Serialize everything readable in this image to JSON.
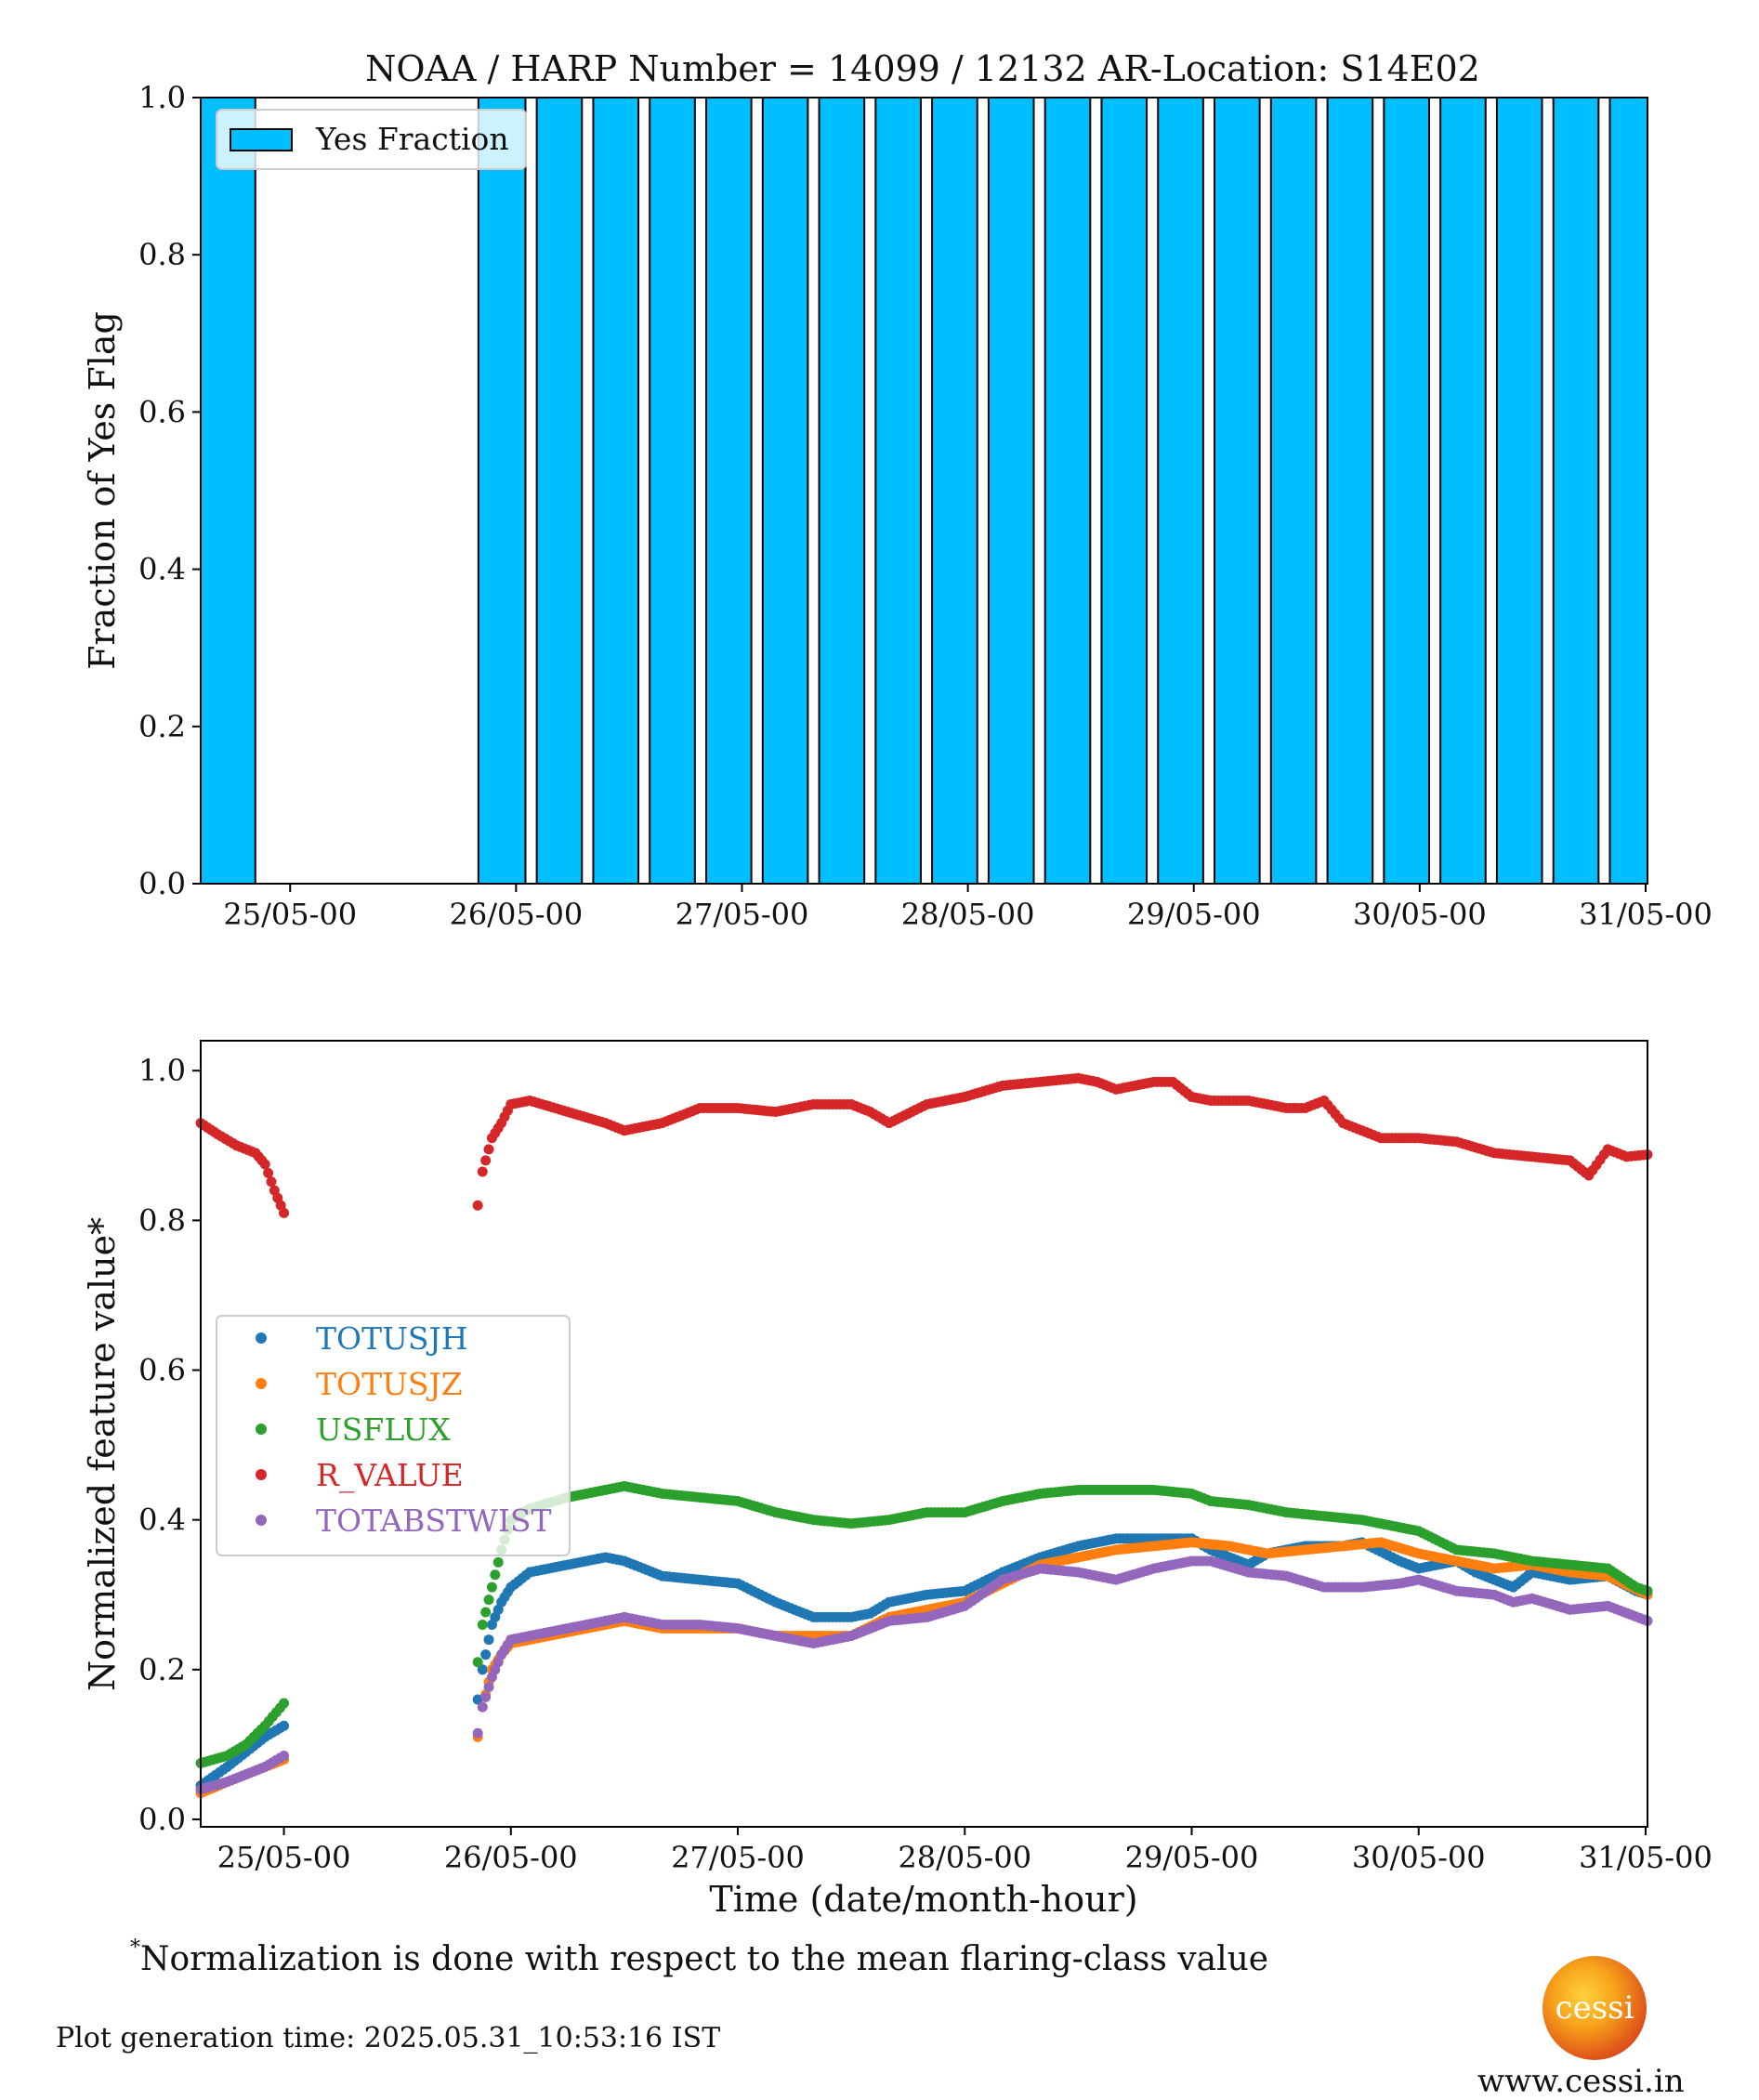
{
  "chart_data": [
    {
      "type": "bar",
      "title": "NOAA / HARP Number = 14099 / 12132      AR-Location: S14E02",
      "xlabel": "",
      "ylabel": "Fraction of Yes Flag",
      "ylim": [
        0.0,
        1.0
      ],
      "yticks": [
        "0.0",
        "0.2",
        "0.4",
        "0.6",
        "0.8",
        "1.0"
      ],
      "xticks": [
        "25/05-00",
        "26/05-00",
        "27/05-00",
        "28/05-00",
        "29/05-00",
        "30/05-00",
        "31/05-00"
      ],
      "x_range_hours": [
        -9.5,
        144.2
      ],
      "bar_color": "#00bfff",
      "legend": {
        "label": "Yes Fraction",
        "position": "upper-left"
      },
      "bars": [
        {
          "x_start": -9.5,
          "x_end": -3.7,
          "value": 1.0
        },
        {
          "x_start": 20.0,
          "x_end": 25.0,
          "value": 1.0
        },
        {
          "x_start": 26.2,
          "x_end": 31.0,
          "value": 1.0
        },
        {
          "x_start": 32.2,
          "x_end": 37.0,
          "value": 1.0
        },
        {
          "x_start": 38.2,
          "x_end": 43.0,
          "value": 1.0
        },
        {
          "x_start": 44.2,
          "x_end": 49.0,
          "value": 1.0
        },
        {
          "x_start": 50.2,
          "x_end": 55.0,
          "value": 1.0
        },
        {
          "x_start": 56.2,
          "x_end": 61.0,
          "value": 1.0
        },
        {
          "x_start": 62.2,
          "x_end": 67.0,
          "value": 1.0
        },
        {
          "x_start": 68.2,
          "x_end": 73.0,
          "value": 1.0
        },
        {
          "x_start": 74.2,
          "x_end": 79.0,
          "value": 1.0
        },
        {
          "x_start": 80.2,
          "x_end": 85.0,
          "value": 1.0
        },
        {
          "x_start": 86.2,
          "x_end": 91.0,
          "value": 1.0
        },
        {
          "x_start": 92.2,
          "x_end": 97.0,
          "value": 1.0
        },
        {
          "x_start": 98.2,
          "x_end": 103.0,
          "value": 1.0
        },
        {
          "x_start": 104.2,
          "x_end": 109.0,
          "value": 1.0
        },
        {
          "x_start": 110.2,
          "x_end": 115.0,
          "value": 1.0
        },
        {
          "x_start": 116.2,
          "x_end": 121.0,
          "value": 1.0
        },
        {
          "x_start": 122.2,
          "x_end": 127.0,
          "value": 1.0
        },
        {
          "x_start": 128.2,
          "x_end": 133.0,
          "value": 1.0
        },
        {
          "x_start": 134.2,
          "x_end": 139.0,
          "value": 1.0
        },
        {
          "x_start": 140.2,
          "x_end": 144.2,
          "value": 1.0
        }
      ]
    },
    {
      "type": "scatter",
      "xlabel": "Time (date/month-hour)",
      "ylabel": "Normalized feature value*",
      "ylim": [
        -0.01,
        1.04
      ],
      "yticks": [
        "0.0",
        "0.2",
        "0.4",
        "0.6",
        "0.8",
        "1.0"
      ],
      "xticks": [
        "25/05-00",
        "26/05-00",
        "27/05-00",
        "28/05-00",
        "29/05-00",
        "30/05-00",
        "31/05-00"
      ],
      "x_range_hours": [
        -8.8,
        144.2
      ],
      "legend": {
        "position": "center-left"
      },
      "series": [
        {
          "name": "TOTUSJH",
          "color": "#1f77b4",
          "points": [
            [
              -8.8,
              0.045
            ],
            [
              -6,
              0.07
            ],
            [
              -4,
              0.09
            ],
            [
              -2,
              0.11
            ],
            [
              0,
              0.125
            ],
            [
              0.5,
              0.125
            ],
            [
              20.5,
              0.16
            ],
            [
              21,
              0.2
            ],
            [
              22,
              0.26
            ],
            [
              23,
              0.29
            ],
            [
              24,
              0.31
            ],
            [
              26,
              0.33
            ],
            [
              30,
              0.34
            ],
            [
              34,
              0.35
            ],
            [
              36,
              0.345
            ],
            [
              40,
              0.325
            ],
            [
              44,
              0.32
            ],
            [
              48,
              0.315
            ],
            [
              52,
              0.29
            ],
            [
              56,
              0.27
            ],
            [
              60,
              0.27
            ],
            [
              62,
              0.275
            ],
            [
              64,
              0.29
            ],
            [
              68,
              0.3
            ],
            [
              72,
              0.305
            ],
            [
              76,
              0.33
            ],
            [
              80,
              0.35
            ],
            [
              84,
              0.365
            ],
            [
              88,
              0.375
            ],
            [
              92,
              0.375
            ],
            [
              96,
              0.375
            ],
            [
              98,
              0.36
            ],
            [
              102,
              0.34
            ],
            [
              104,
              0.355
            ],
            [
              108,
              0.365
            ],
            [
              112,
              0.365
            ],
            [
              114,
              0.37
            ],
            [
              118,
              0.345
            ],
            [
              120,
              0.335
            ],
            [
              124,
              0.345
            ],
            [
              126,
              0.33
            ],
            [
              128,
              0.32
            ],
            [
              130,
              0.31
            ],
            [
              132,
              0.33
            ],
            [
              136,
              0.32
            ],
            [
              140,
              0.325
            ],
            [
              143,
              0.305
            ],
            [
              144.2,
              0.3
            ]
          ]
        },
        {
          "name": "TOTUSJZ",
          "color": "#ff7f0e",
          "points": [
            [
              -8.8,
              0.035
            ],
            [
              -6,
              0.05
            ],
            [
              -4,
              0.06
            ],
            [
              -2,
              0.07
            ],
            [
              0,
              0.08
            ],
            [
              0.5,
              0.082
            ],
            [
              20.5,
              0.11
            ],
            [
              21,
              0.15
            ],
            [
              22,
              0.2
            ],
            [
              23,
              0.22
            ],
            [
              24,
              0.235
            ],
            [
              28,
              0.245
            ],
            [
              32,
              0.255
            ],
            [
              36,
              0.265
            ],
            [
              40,
              0.255
            ],
            [
              44,
              0.255
            ],
            [
              48,
              0.255
            ],
            [
              52,
              0.245
            ],
            [
              56,
              0.245
            ],
            [
              60,
              0.245
            ],
            [
              64,
              0.27
            ],
            [
              68,
              0.28
            ],
            [
              72,
              0.29
            ],
            [
              76,
              0.315
            ],
            [
              80,
              0.34
            ],
            [
              84,
              0.35
            ],
            [
              88,
              0.36
            ],
            [
              92,
              0.365
            ],
            [
              96,
              0.37
            ],
            [
              100,
              0.365
            ],
            [
              104,
              0.355
            ],
            [
              108,
              0.36
            ],
            [
              112,
              0.365
            ],
            [
              116,
              0.37
            ],
            [
              120,
              0.355
            ],
            [
              124,
              0.345
            ],
            [
              128,
              0.335
            ],
            [
              132,
              0.34
            ],
            [
              136,
              0.33
            ],
            [
              140,
              0.325
            ],
            [
              144.2,
              0.3
            ]
          ]
        },
        {
          "name": "USFLUX",
          "color": "#2ca02c",
          "points": [
            [
              -8.8,
              0.075
            ],
            [
              -6,
              0.085
            ],
            [
              -4,
              0.1
            ],
            [
              -2,
              0.125
            ],
            [
              0,
              0.155
            ],
            [
              0.5,
              0.162
            ],
            [
              20.5,
              0.21
            ],
            [
              21,
              0.26
            ],
            [
              22,
              0.31
            ],
            [
              23,
              0.36
            ],
            [
              24,
              0.4
            ],
            [
              26,
              0.415
            ],
            [
              30,
              0.43
            ],
            [
              34,
              0.44
            ],
            [
              36,
              0.445
            ],
            [
              40,
              0.435
            ],
            [
              44,
              0.43
            ],
            [
              48,
              0.425
            ],
            [
              52,
              0.41
            ],
            [
              56,
              0.4
            ],
            [
              60,
              0.395
            ],
            [
              64,
              0.4
            ],
            [
              68,
              0.41
            ],
            [
              72,
              0.41
            ],
            [
              76,
              0.425
            ],
            [
              80,
              0.435
            ],
            [
              84,
              0.44
            ],
            [
              88,
              0.44
            ],
            [
              92,
              0.44
            ],
            [
              96,
              0.435
            ],
            [
              98,
              0.425
            ],
            [
              102,
              0.42
            ],
            [
              106,
              0.41
            ],
            [
              110,
              0.405
            ],
            [
              114,
              0.4
            ],
            [
              118,
              0.39
            ],
            [
              120,
              0.385
            ],
            [
              124,
              0.36
            ],
            [
              128,
              0.355
            ],
            [
              132,
              0.345
            ],
            [
              136,
              0.34
            ],
            [
              140,
              0.335
            ],
            [
              143,
              0.31
            ],
            [
              144.2,
              0.305
            ]
          ]
        },
        {
          "name": "R_VALUE",
          "color": "#d62728",
          "points": [
            [
              -8.8,
              0.93
            ],
            [
              -7,
              0.915
            ],
            [
              -5,
              0.9
            ],
            [
              -3,
              0.89
            ],
            [
              -2,
              0.875
            ],
            [
              -1,
              0.84
            ],
            [
              0,
              0.81
            ],
            [
              0.5,
              0.795
            ],
            [
              20.5,
              0.82
            ],
            [
              21,
              0.865
            ],
            [
              22,
              0.91
            ],
            [
              23,
              0.93
            ],
            [
              24,
              0.955
            ],
            [
              26,
              0.96
            ],
            [
              30,
              0.945
            ],
            [
              34,
              0.93
            ],
            [
              36,
              0.92
            ],
            [
              40,
              0.93
            ],
            [
              44,
              0.95
            ],
            [
              48,
              0.95
            ],
            [
              52,
              0.945
            ],
            [
              56,
              0.955
            ],
            [
              60,
              0.955
            ],
            [
              62,
              0.945
            ],
            [
              64,
              0.93
            ],
            [
              68,
              0.955
            ],
            [
              72,
              0.965
            ],
            [
              76,
              0.98
            ],
            [
              80,
              0.985
            ],
            [
              84,
              0.99
            ],
            [
              86,
              0.985
            ],
            [
              88,
              0.975
            ],
            [
              92,
              0.985
            ],
            [
              94,
              0.985
            ],
            [
              96,
              0.965
            ],
            [
              98,
              0.96
            ],
            [
              102,
              0.96
            ],
            [
              106,
              0.95
            ],
            [
              108,
              0.95
            ],
            [
              110,
              0.96
            ],
            [
              112,
              0.93
            ],
            [
              116,
              0.91
            ],
            [
              120,
              0.91
            ],
            [
              124,
              0.905
            ],
            [
              128,
              0.89
            ],
            [
              132,
              0.885
            ],
            [
              136,
              0.88
            ],
            [
              138,
              0.86
            ],
            [
              140,
              0.895
            ],
            [
              142,
              0.885
            ],
            [
              144.2,
              0.888
            ]
          ]
        },
        {
          "name": "TOTABSTWIST",
          "color": "#9467bd",
          "points": [
            [
              -8.8,
              0.04
            ],
            [
              -6,
              0.05
            ],
            [
              -4,
              0.06
            ],
            [
              -2,
              0.07
            ],
            [
              0,
              0.085
            ],
            [
              0.5,
              0.088
            ],
            [
              20.5,
              0.115
            ],
            [
              21,
              0.15
            ],
            [
              22,
              0.19
            ],
            [
              23,
              0.22
            ],
            [
              24,
              0.24
            ],
            [
              28,
              0.25
            ],
            [
              32,
              0.26
            ],
            [
              36,
              0.27
            ],
            [
              40,
              0.26
            ],
            [
              44,
              0.26
            ],
            [
              48,
              0.255
            ],
            [
              52,
              0.245
            ],
            [
              56,
              0.235
            ],
            [
              60,
              0.245
            ],
            [
              64,
              0.265
            ],
            [
              68,
              0.27
            ],
            [
              72,
              0.285
            ],
            [
              76,
              0.32
            ],
            [
              80,
              0.335
            ],
            [
              84,
              0.33
            ],
            [
              88,
              0.32
            ],
            [
              92,
              0.335
            ],
            [
              96,
              0.345
            ],
            [
              98,
              0.345
            ],
            [
              102,
              0.33
            ],
            [
              106,
              0.325
            ],
            [
              110,
              0.31
            ],
            [
              114,
              0.31
            ],
            [
              118,
              0.315
            ],
            [
              120,
              0.32
            ],
            [
              124,
              0.305
            ],
            [
              128,
              0.3
            ],
            [
              130,
              0.29
            ],
            [
              132,
              0.295
            ],
            [
              136,
              0.28
            ],
            [
              140,
              0.285
            ],
            [
              144.2,
              0.265
            ]
          ]
        }
      ]
    }
  ],
  "footnote": "Normalization is done with respect to the mean flaring-class value",
  "footnote_mark": "*",
  "generation_time": "Plot generation time: 2025.05.31_10:53:16 IST",
  "logo_text": "cessi",
  "website": "www.cessi.in"
}
